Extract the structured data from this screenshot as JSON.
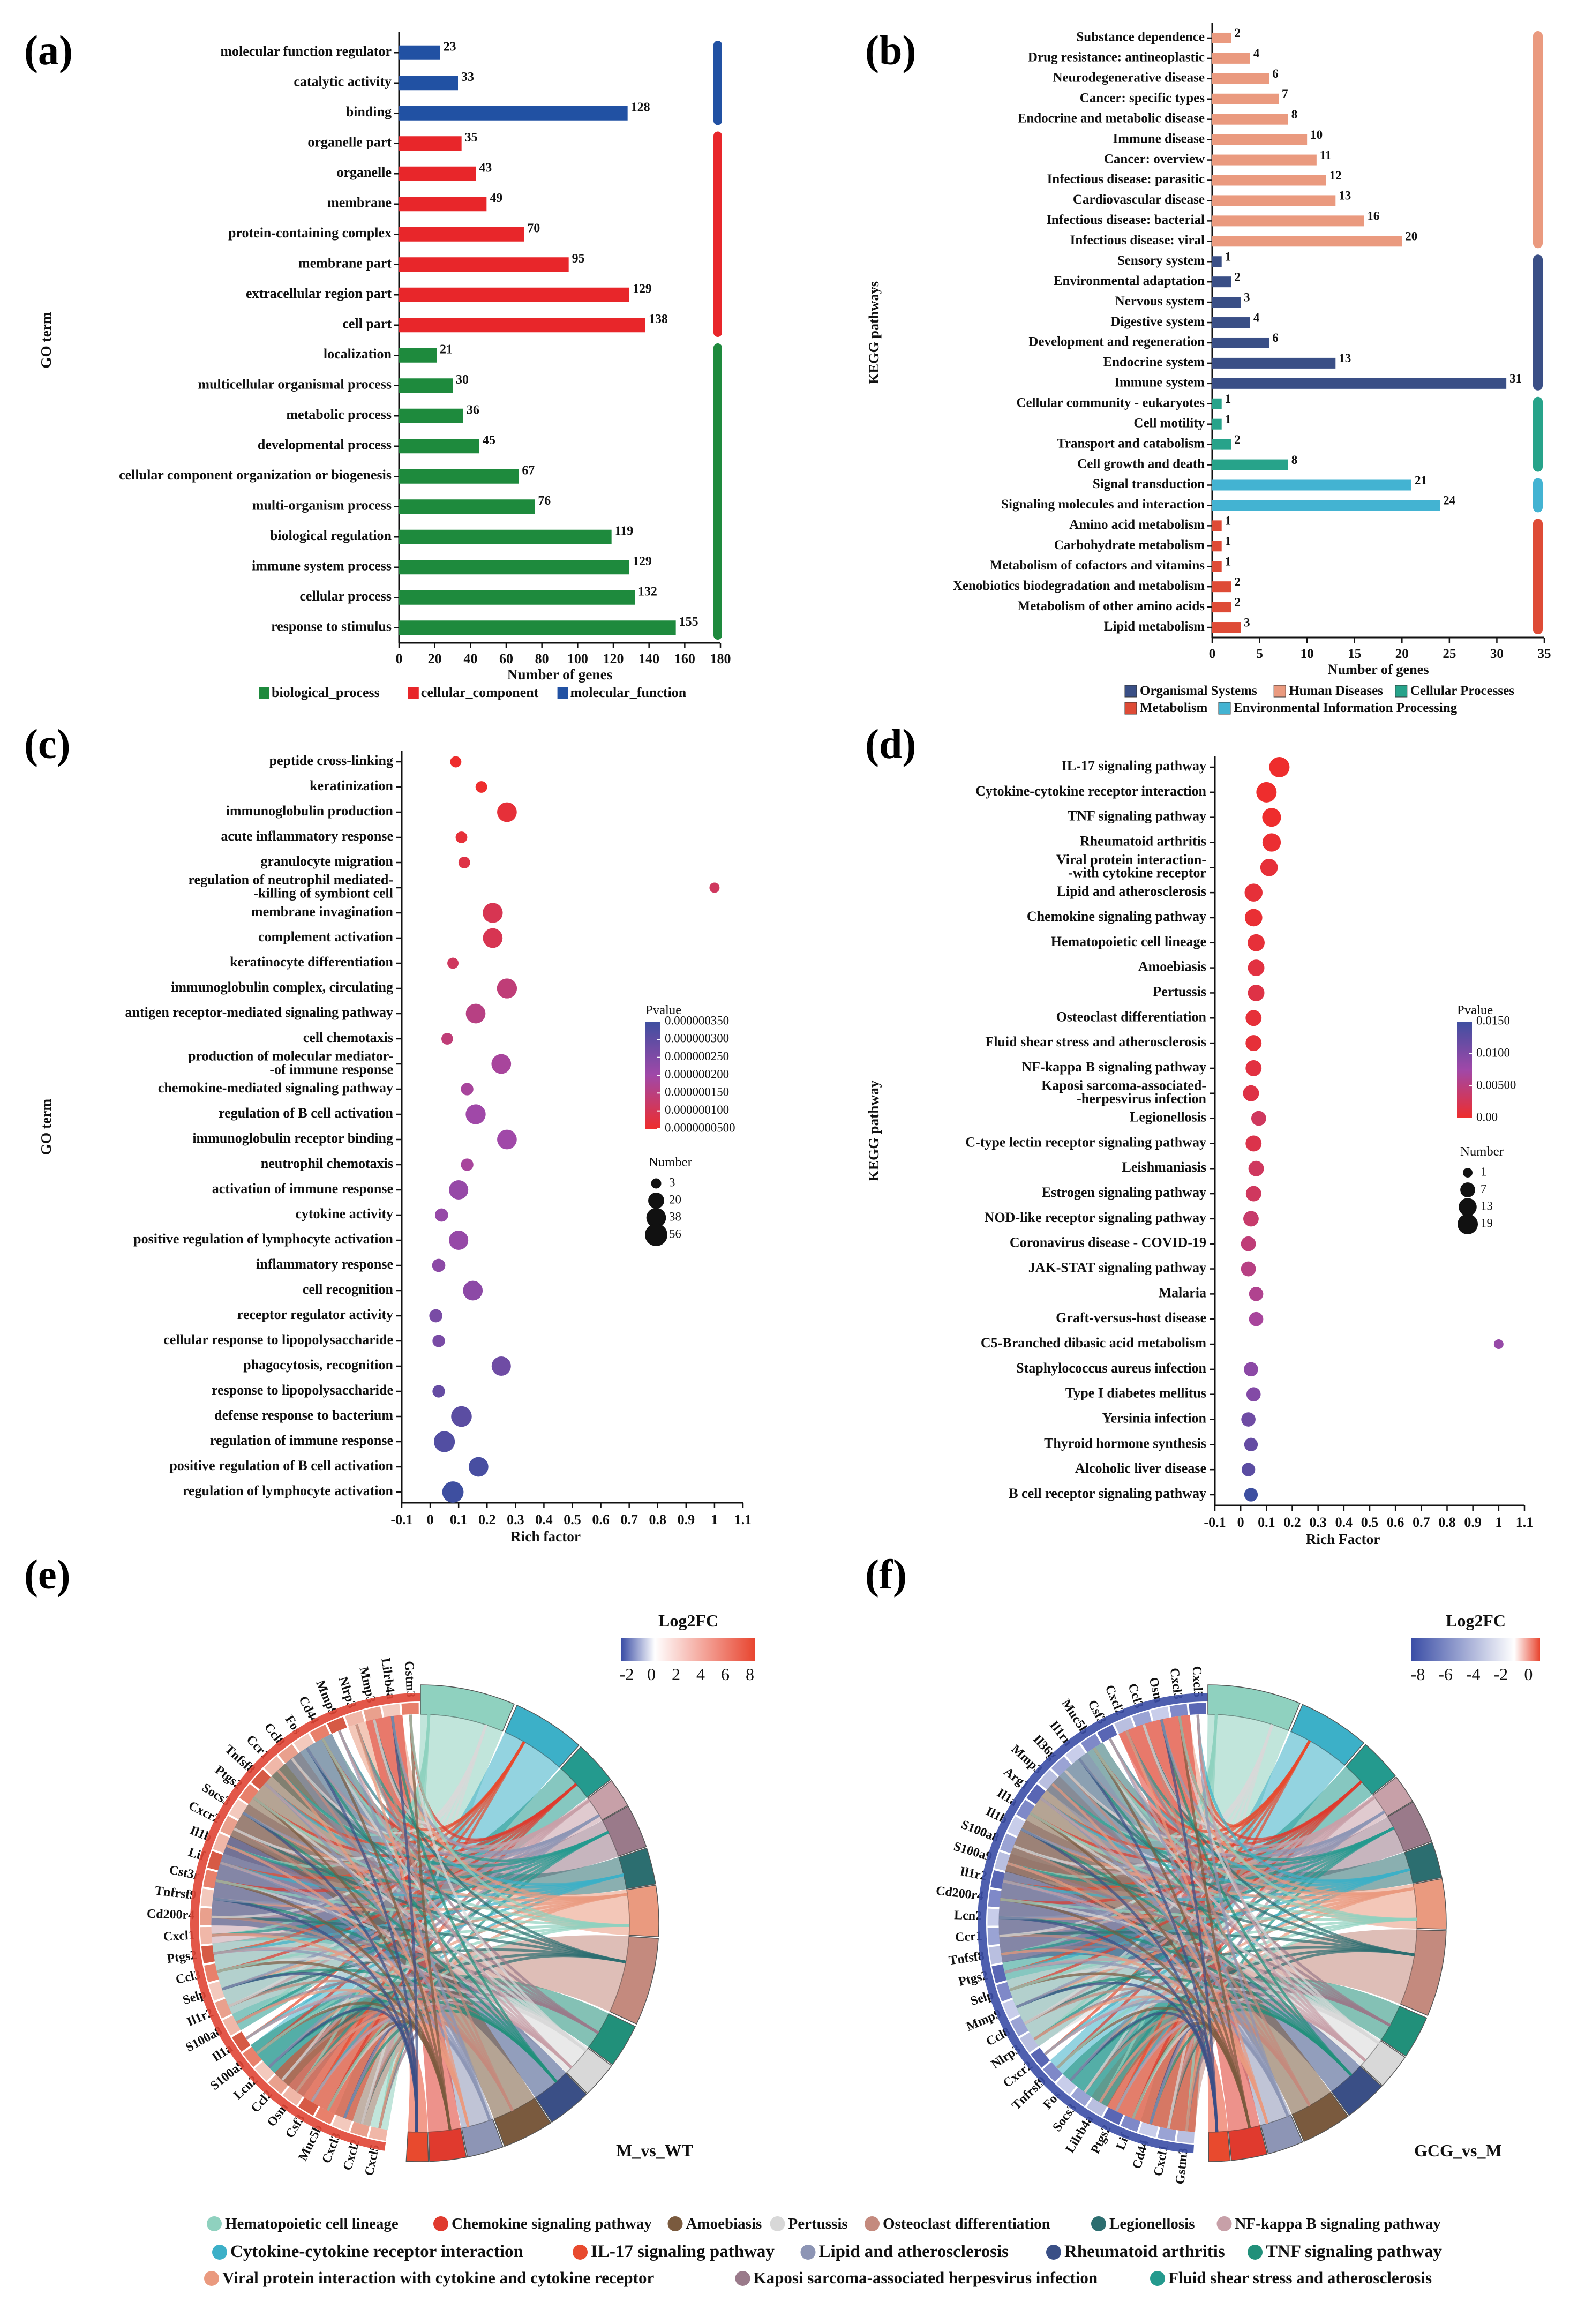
{
  "panels": {
    "a": "(a)",
    "b": "(b)",
    "c": "(c)",
    "d": "(d)",
    "e": "(e)",
    "f": "(f)"
  },
  "chart_data": [
    {
      "id": "a",
      "type": "bar",
      "orientation": "horizontal",
      "xlabel": "Number of genes",
      "ylabel": "GO term",
      "xlim": [
        0,
        180
      ],
      "xticks": [
        0,
        20,
        40,
        60,
        80,
        100,
        120,
        140,
        160,
        180
      ],
      "colors": {
        "biological_process": "#1e8a3d",
        "cellular_component": "#e8262a",
        "molecular_function": "#2151a3"
      },
      "legend": [
        "biological_process",
        "cellular_component",
        "molecular_function"
      ],
      "categories": [
        "molecular function regulator",
        "catalytic activity",
        "binding",
        "organelle part",
        "organelle",
        "membrane",
        "protein-containing complex",
        "membrane part",
        "extracellular region part",
        "cell part",
        "localization",
        "multicellular organismal process",
        "metabolic process",
        "developmental process",
        "cellular component organization or biogenesis",
        "multi-organism process",
        "biological regulation",
        "immune system process",
        "cellular process",
        "response to stimulus"
      ],
      "values": [
        23,
        33,
        128,
        35,
        43,
        49,
        70,
        95,
        129,
        138,
        21,
        30,
        36,
        45,
        67,
        76,
        119,
        129,
        132,
        155
      ],
      "groups": [
        "molecular_function",
        "molecular_function",
        "molecular_function",
        "cellular_component",
        "cellular_component",
        "cellular_component",
        "cellular_component",
        "cellular_component",
        "cellular_component",
        "cellular_component",
        "biological_process",
        "biological_process",
        "biological_process",
        "biological_process",
        "biological_process",
        "biological_process",
        "biological_process",
        "biological_process",
        "biological_process",
        "biological_process"
      ]
    },
    {
      "id": "b",
      "type": "bar",
      "orientation": "horizontal",
      "xlabel": "Number of genes",
      "ylabel": "KEGG pathways",
      "xlim": [
        0,
        35
      ],
      "xticks": [
        0,
        5,
        10,
        15,
        20,
        25,
        30,
        35
      ],
      "colors": {
        "Organismal Systems": "#3a4f86",
        "Human Diseases": "#ea9a7f",
        "Cellular Processes": "#27a38a",
        "Metabolism": "#de4b36",
        "Environmental Information Processing": "#43b3d2"
      },
      "legend_row1": [
        "Organismal Systems",
        "Human Diseases",
        "Cellular Processes"
      ],
      "legend_row2": [
        "Metabolism",
        "Environmental Information Processing"
      ],
      "categories": [
        "Substance dependence",
        "Drug resistance: antineoplastic",
        "Neurodegenerative disease",
        "Cancer: specific types",
        "Endocrine and metabolic disease",
        "Immune disease",
        "Cancer: overview",
        "Infectious disease: parasitic",
        "Cardiovascular disease",
        "Infectious disease: bacterial",
        "Infectious disease: viral",
        "Sensory system",
        "Environmental adaptation",
        "Nervous system",
        "Digestive system",
        "Development and regeneration",
        "Endocrine system",
        "Immune system",
        "Cellular community - eukaryotes",
        "Cell motility",
        "Transport and catabolism",
        "Cell growth and death",
        "Signal transduction",
        "Signaling molecules and interaction",
        "Amino acid metabolism",
        "Carbohydrate metabolism",
        "Metabolism of cofactors and vitamins",
        "Xenobiotics biodegradation and metabolism",
        "Metabolism of other amino acids",
        "Lipid metabolism"
      ],
      "values": [
        2,
        4,
        6,
        7,
        8,
        10,
        11,
        12,
        13,
        16,
        20,
        1,
        2,
        3,
        4,
        6,
        13,
        31,
        1,
        1,
        2,
        8,
        21,
        24,
        1,
        1,
        1,
        2,
        2,
        3
      ],
      "groups": [
        "Human Diseases",
        "Human Diseases",
        "Human Diseases",
        "Human Diseases",
        "Human Diseases",
        "Human Diseases",
        "Human Diseases",
        "Human Diseases",
        "Human Diseases",
        "Human Diseases",
        "Human Diseases",
        "Organismal Systems",
        "Organismal Systems",
        "Organismal Systems",
        "Organismal Systems",
        "Organismal Systems",
        "Organismal Systems",
        "Organismal Systems",
        "Cellular Processes",
        "Cellular Processes",
        "Cellular Processes",
        "Cellular Processes",
        "Environmental Information Processing",
        "Environmental Information Processing",
        "Metabolism",
        "Metabolism",
        "Metabolism",
        "Metabolism",
        "Metabolism",
        "Metabolism"
      ]
    },
    {
      "id": "c",
      "type": "scatter",
      "xlabel": "Rich factor",
      "ylabel": "GO term",
      "xlim": [
        -0.1,
        1.1
      ],
      "xticks": [
        "-0.1",
        "0",
        "0.1",
        "0.2",
        "0.3",
        "0.4",
        "0.5",
        "0.6",
        "0.7",
        "0.8",
        "0.9",
        "1",
        "1.1"
      ],
      "color_title": "Pvalue",
      "color_ticks": [
        "0.000000350",
        "0.000000300",
        "0.000000250",
        "0.000000200",
        "0.000000150",
        "0.000000100",
        "0.0000000500"
      ],
      "size_title": "Number",
      "size_ticks": [
        "3",
        "20",
        "38",
        "56"
      ],
      "size_values": [
        3,
        20,
        38,
        56
      ],
      "categories": [
        "peptide cross-linking",
        "keratinization",
        "immunoglobulin production",
        "acute inflammatory response",
        "granulocyte migration",
        "regulation of neutrophil mediated-\n-killing of symbiont cell",
        "membrane invagination",
        "complement activation",
        "keratinocyte differentiation",
        "immunoglobulin complex, circulating",
        "antigen receptor-mediated signaling pathway",
        "cell chemotaxis",
        "production of molecular mediator-\n-of immune response",
        "chemokine-mediated signaling pathway",
        "regulation of B cell activation",
        "immunoglobulin receptor binding",
        "neutrophil chemotaxis",
        "activation of immune response",
        "cytokine activity",
        "positive regulation of lymphocyte activation",
        "inflammatory response",
        "cell recognition",
        "receptor regulator activity",
        "cellular response to lipopolysaccharide",
        "phagocytosis, recognition",
        "response to lipopolysaccharide",
        "defense response to bacterium",
        "regulation of immune response",
        "positive regulation of B cell activation",
        "regulation of lymphocyte activation"
      ],
      "x": [
        0.09,
        0.18,
        0.27,
        0.11,
        0.12,
        1.0,
        0.22,
        0.22,
        0.08,
        0.27,
        0.16,
        0.06,
        0.25,
        0.13,
        0.16,
        0.27,
        0.13,
        0.1,
        0.04,
        0.1,
        0.03,
        0.15,
        0.02,
        0.03,
        0.25,
        0.03,
        0.11,
        0.05,
        0.17,
        0.08
      ],
      "number": [
        5,
        6,
        38,
        6,
        6,
        3,
        40,
        38,
        5,
        40,
        38,
        6,
        38,
        8,
        40,
        38,
        8,
        36,
        10,
        36,
        10,
        38,
        10,
        8,
        36,
        8,
        44,
        46,
        38,
        48
      ],
      "pvalue_frac": [
        0.0,
        0.0,
        0.05,
        0.05,
        0.1,
        0.2,
        0.15,
        0.15,
        0.2,
        0.3,
        0.35,
        0.3,
        0.45,
        0.45,
        0.5,
        0.5,
        0.45,
        0.55,
        0.55,
        0.55,
        0.6,
        0.6,
        0.7,
        0.7,
        0.75,
        0.8,
        0.85,
        0.9,
        0.95,
        1.0
      ]
    },
    {
      "id": "d",
      "type": "scatter",
      "xlabel": "Rich Factor",
      "ylabel": "KEGG pathway",
      "xlim": [
        -0.1,
        1.1
      ],
      "xticks": [
        "-0.1",
        "0",
        "0.1",
        "0.2",
        "0.3",
        "0.4",
        "0.5",
        "0.6",
        "0.7",
        "0.8",
        "0.9",
        "1",
        "1.1"
      ],
      "color_title": "Pvalue",
      "color_ticks": [
        "0.0150",
        "0.0100",
        "0.00500",
        "0.00"
      ],
      "size_title": "Number",
      "size_ticks": [
        "1",
        "7",
        "13",
        "19"
      ],
      "size_values": [
        1,
        7,
        13,
        19
      ],
      "categories": [
        "IL-17 signaling pathway",
        "Cytokine-cytokine receptor interaction",
        "TNF signaling pathway",
        "Rheumatoid arthritis",
        "Viral protein interaction-\n-with cytokine receptor",
        "Lipid and atherosclerosis",
        "Chemokine signaling pathway",
        "Hematopoietic cell lineage",
        "Amoebiasis",
        "Pertussis",
        "Osteoclast differentiation",
        "Fluid shear stress and atherosclerosis",
        "NF-kappa B signaling pathway",
        "Kaposi sarcoma-associated-\n-herpesvirus infection",
        "Legionellosis",
        "C-type lectin receptor signaling pathway",
        "Leishmaniasis",
        "Estrogen signaling pathway",
        "NOD-like receptor signaling pathway",
        "Coronavirus disease - COVID-19",
        "JAK-STAT signaling pathway",
        "Malaria",
        "Graft-versus-host disease",
        "C5-Branched dibasic acid metabolism",
        "Staphylococcus aureus infection",
        "Type I diabetes mellitus",
        "Yersinia infection",
        "Thyroid hormone synthesis",
        "Alcoholic liver disease",
        "B cell receptor signaling pathway"
      ],
      "x": [
        0.15,
        0.1,
        0.12,
        0.12,
        0.11,
        0.05,
        0.05,
        0.06,
        0.06,
        0.06,
        0.05,
        0.05,
        0.05,
        0.04,
        0.07,
        0.05,
        0.06,
        0.05,
        0.04,
        0.03,
        0.03,
        0.06,
        0.06,
        1.0,
        0.04,
        0.05,
        0.03,
        0.04,
        0.03,
        0.04
      ],
      "number": [
        19,
        19,
        15,
        14,
        12,
        13,
        12,
        11,
        10,
        10,
        9,
        9,
        9,
        9,
        7,
        9,
        8,
        8,
        8,
        7,
        7,
        6,
        6,
        1,
        6,
        6,
        6,
        5,
        5,
        5
      ],
      "pvalue_frac": [
        0.0,
        0.0,
        0.0,
        0.02,
        0.05,
        0.05,
        0.03,
        0.05,
        0.08,
        0.1,
        0.05,
        0.05,
        0.08,
        0.1,
        0.2,
        0.12,
        0.2,
        0.2,
        0.25,
        0.3,
        0.35,
        0.4,
        0.45,
        0.55,
        0.6,
        0.65,
        0.75,
        0.8,
        0.85,
        1.0
      ]
    },
    {
      "id": "e",
      "type": "chord",
      "title": "M_vs_WT",
      "color_title": "Log2FC",
      "color_ticks": [
        "-2",
        "0",
        "2",
        "4",
        "6",
        "8"
      ],
      "genes": [
        "Cxcl5",
        "Cxcl2",
        "Cxcl3",
        "Muc5b",
        "Csf3",
        "Osm",
        "Ccl2",
        "Lcn2",
        "S100a9",
        "Il1a",
        "S100a8",
        "Il1r2",
        "Selp",
        "Ccl3",
        "Ptgs2",
        "Cxcl1",
        "Cd200r4",
        "Tnfrsf9",
        "Cst3r",
        "Lif",
        "Il1b",
        "Cxcr2",
        "Socs3",
        "Ptgs2",
        "Tnfsf8",
        "Ccr1",
        "Ccl8",
        "Fos",
        "Cd44",
        "Mmp9",
        "Nlrp3",
        "Mmp3",
        "Lilrb4a",
        "Gstm3"
      ]
    },
    {
      "id": "f",
      "type": "chord",
      "title": "GCG_vs_M",
      "color_title": "Log2FC",
      "color_ticks": [
        "-8",
        "-6",
        "-4",
        "-2",
        "0"
      ],
      "genes": [
        "Gstm3",
        "Cxcl1",
        "Cd44",
        "Lif",
        "Ptgs2",
        "Lilrb4a",
        "Socs3",
        "Fos",
        "Tnfrsf9",
        "Cxcr2",
        "Nlrp3",
        "Ccl8",
        "Mmp9",
        "Selp",
        "Ptgs2",
        "Tnfsf8",
        "Ccr1",
        "Lcn2",
        "Cd200r4",
        "Il1r2",
        "S100a9",
        "S100a8",
        "Il1b",
        "Il1a",
        "Arg1",
        "Mmp3",
        "Il36g",
        "Il1rn",
        "Muc5b",
        "Csf3",
        "Cxcl2",
        "Ccl3",
        "Osm",
        "Cxcl3",
        "Cxcl5"
      ]
    }
  ],
  "chord_legend": [
    {
      "label": "Hematopoietic cell lineage",
      "color": "#8fd1bf"
    },
    {
      "label": "Chemokine signaling pathway",
      "color": "#e03a2e"
    },
    {
      "label": "Amoebiasis",
      "color": "#7a5a3e"
    },
    {
      "label": "Pertussis",
      "color": "#d8d8d8"
    },
    {
      "label": "Osteoclast differentiation",
      "color": "#c48a7e"
    },
    {
      "label": "Legionellosis",
      "color": "#2c6e70"
    },
    {
      "label": "NF-kappa B signaling pathway",
      "color": "#c7a0a8"
    },
    {
      "label": "Cytokine-cytokine receptor interaction",
      "color": "#3cb0c8"
    },
    {
      "label": "IL-17 signaling pathway",
      "color": "#e84a2e"
    },
    {
      "label": "Lipid and atherosclerosis",
      "color": "#8d95b5"
    },
    {
      "label": "Rheumatoid arthritis",
      "color": "#3a4f86"
    },
    {
      "label": "TNF signaling pathway",
      "color": "#21907a"
    },
    {
      "label": "Viral protein interaction with cytokine and cytokine receptor",
      "color": "#ea9a7f"
    },
    {
      "label": "Kaposi sarcoma-associated herpesvirus infection",
      "color": "#9a7a8a"
    },
    {
      "label": "Fluid shear stress and atherosclerosis",
      "color": "#249a8e"
    }
  ]
}
